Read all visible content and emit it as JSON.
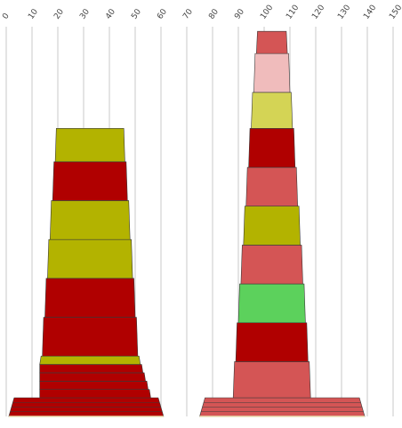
{
  "chart_data": {
    "type": "bar",
    "subtype": "stacked-tower",
    "grid": true,
    "x_axis_ticks": [
      "0",
      "10",
      "20",
      "30",
      "40",
      "50",
      "60",
      "70",
      "80",
      "90",
      "100",
      "110",
      "120",
      "130",
      "140",
      "150"
    ],
    "towers": [
      {
        "base": {
          "left": 1,
          "right": 61,
          "color": "#b00000"
        },
        "segments": [
          {
            "left": 13,
            "right": 56,
            "height": 3,
            "color": "#b00000"
          },
          {
            "left": 13,
            "right": 55,
            "height": 3,
            "color": "#b00000"
          },
          {
            "left": 13,
            "right": 54,
            "height": 3,
            "color": "#b00000"
          },
          {
            "left": 13,
            "right": 53,
            "height": 3,
            "color": "#b00000"
          },
          {
            "left": 13,
            "right": 52,
            "height": 3,
            "color": "#b3b300"
          },
          {
            "left": 14,
            "right": 51,
            "height": 14,
            "color": "#b00000"
          },
          {
            "left": 15,
            "right": 50,
            "height": 14,
            "color": "#b00000"
          },
          {
            "left": 16,
            "right": 49,
            "height": 14,
            "color": "#b3b300"
          },
          {
            "left": 17,
            "right": 48,
            "height": 14,
            "color": "#b3b300"
          },
          {
            "left": 18,
            "right": 47,
            "height": 14,
            "color": "#b00000"
          },
          {
            "left": 19,
            "right": 46,
            "height": 12,
            "color": "#b3b300"
          }
        ]
      },
      {
        "base": {
          "left": 75,
          "right": 139,
          "color": "#d45555"
        },
        "segments": [
          {
            "left": 88,
            "right": 118,
            "height": 13,
            "color": "#d45555"
          },
          {
            "left": 89,
            "right": 117,
            "height": 14,
            "color": "#b00000"
          },
          {
            "left": 90,
            "right": 116,
            "height": 14,
            "color": "#5cd15c"
          },
          {
            "left": 91,
            "right": 115,
            "height": 14,
            "color": "#d45555"
          },
          {
            "left": 92,
            "right": 114,
            "height": 14,
            "color": "#b3b300"
          },
          {
            "left": 93,
            "right": 113,
            "height": 14,
            "color": "#d45555"
          },
          {
            "left": 94,
            "right": 112,
            "height": 14,
            "color": "#b00000"
          },
          {
            "left": 95,
            "right": 111,
            "height": 13,
            "color": "#d4d455"
          },
          {
            "left": 96,
            "right": 110,
            "height": 14,
            "color": "#f0bcbc"
          },
          {
            "left": 97,
            "right": 109,
            "height": 8,
            "color": "#d45555"
          }
        ]
      }
    ]
  }
}
